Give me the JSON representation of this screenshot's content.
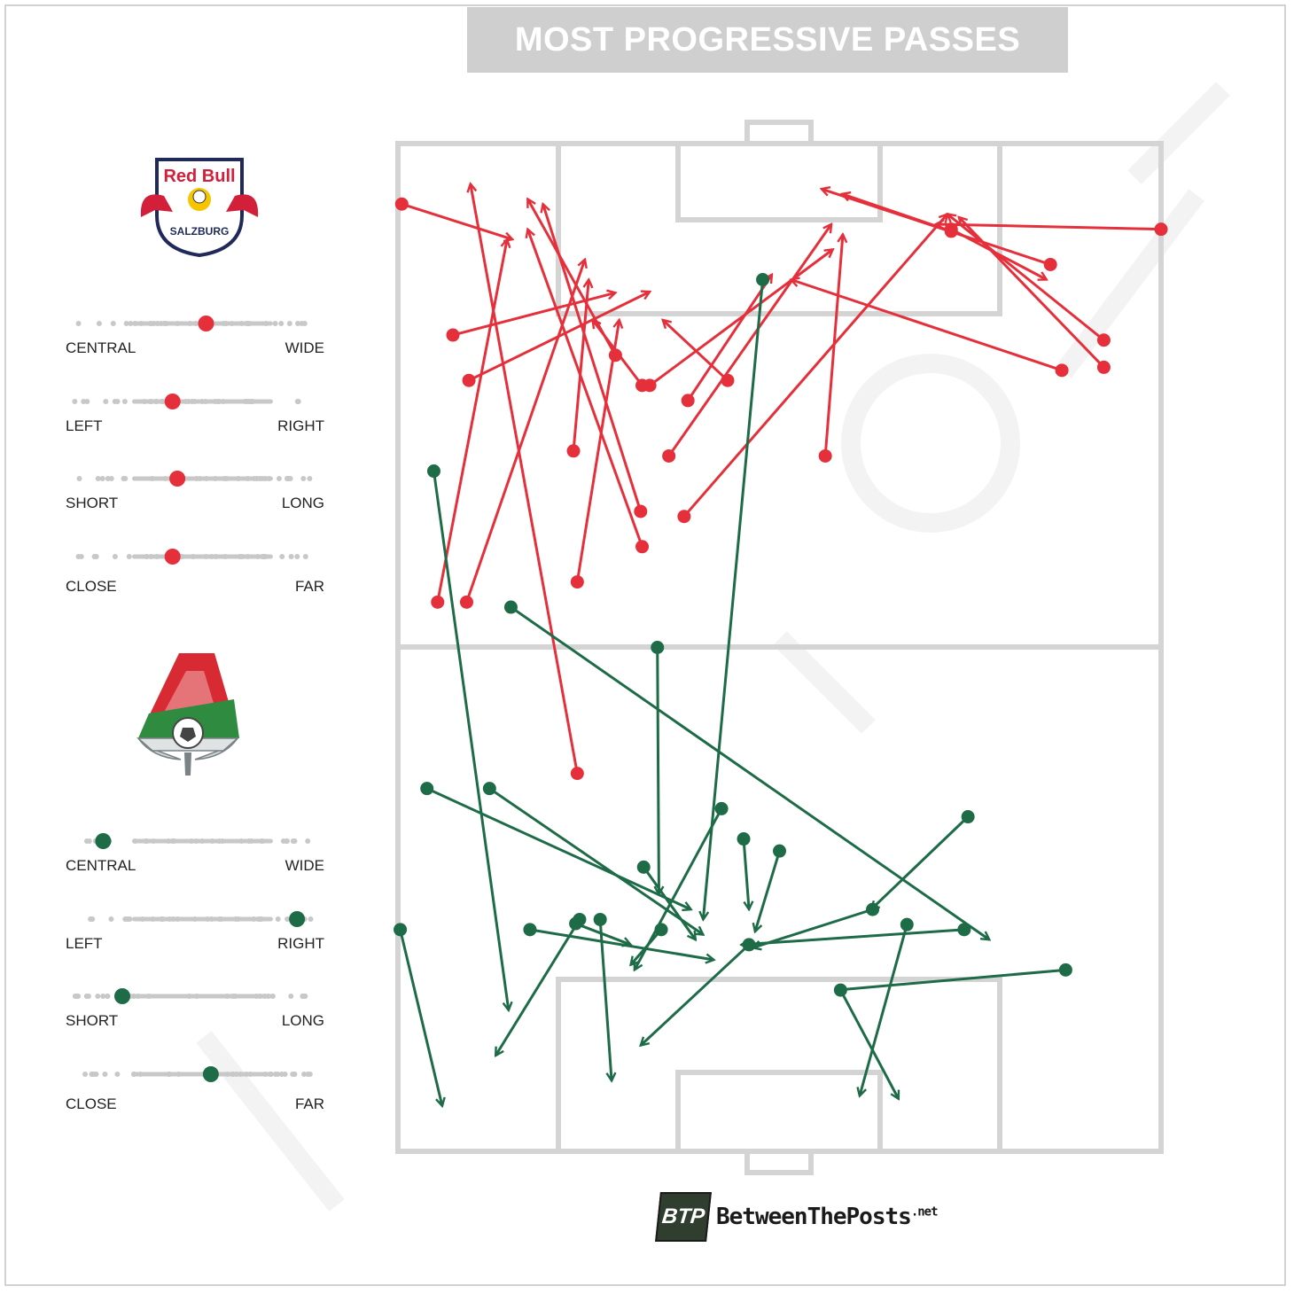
{
  "title": "MOST PROGRESSIVE PASSES",
  "colors": {
    "salzburg": "#e5303b",
    "lokomotiv": "#1e6b47",
    "pitch": "#d4d4d4",
    "slider_track": "#c8c8c8"
  },
  "teams": [
    {
      "name": "Red Bull Salzburg",
      "badge_text": "Red Bull",
      "badge_sub": "SALZBURG",
      "sliders": [
        {
          "left": "CENTRAL",
          "right": "WIDE",
          "value": 0.55
        },
        {
          "left": "LEFT",
          "right": "RIGHT",
          "value": 0.41
        },
        {
          "left": "SHORT",
          "right": "LONG",
          "value": 0.43
        },
        {
          "left": "CLOSE",
          "right": "FAR",
          "value": 0.41
        }
      ]
    },
    {
      "name": "Lokomotiv Moscow",
      "sliders": [
        {
          "left": "CENTRAL",
          "right": "WIDE",
          "value": 0.12
        },
        {
          "left": "LEFT",
          "right": "RIGHT",
          "value": 0.93
        },
        {
          "left": "SHORT",
          "right": "LONG",
          "value": 0.2
        },
        {
          "left": "CLOSE",
          "right": "FAR",
          "value": 0.57
        }
      ]
    }
  ],
  "brand": {
    "logo": "BTP",
    "name": "BetweenThePosts",
    "tld": ".net"
  },
  "chart_data": {
    "type": "pass-map",
    "title": "MOST PROGRESSIVE PASSES",
    "coordinate_system": "pitch fraction: x 0 = left touchline to 1 = right touchline; y 0 = top goal line to 1 = bottom goal line",
    "series": [
      {
        "team": "Red Bull Salzburg",
        "passes": [
          {
            "from": [
              0.005,
              0.06
            ],
            "to": [
              0.15,
              0.095
            ]
          },
          {
            "from": [
              0.235,
              0.625
            ],
            "to": [
              0.095,
              0.04
            ]
          },
          {
            "from": [
              0.052,
              0.455
            ],
            "to": [
              0.143,
              0.095
            ]
          },
          {
            "from": [
              0.09,
              0.455
            ],
            "to": [
              0.245,
              0.115
            ]
          },
          {
            "from": [
              0.072,
              0.19
            ],
            "to": [
              0.285,
              0.148
            ]
          },
          {
            "from": [
              0.093,
              0.235
            ],
            "to": [
              0.33,
              0.147
            ]
          },
          {
            "from": [
              0.23,
              0.305
            ],
            "to": [
              0.25,
              0.135
            ]
          },
          {
            "from": [
              0.235,
              0.435
            ],
            "to": [
              0.29,
              0.175
            ]
          },
          {
            "from": [
              0.285,
              0.21
            ],
            "to": [
              0.17,
              0.055
            ]
          },
          {
            "from": [
              0.318,
              0.365
            ],
            "to": [
              0.19,
              0.06
            ]
          },
          {
            "from": [
              0.32,
              0.4
            ],
            "to": [
              0.17,
              0.085
            ]
          },
          {
            "from": [
              0.32,
              0.24
            ],
            "to": [
              0.255,
              0.175
            ]
          },
          {
            "from": [
              0.432,
              0.235
            ],
            "to": [
              0.347,
              0.175
            ]
          },
          {
            "from": [
              0.38,
              0.255
            ],
            "to": [
              0.49,
              0.13
            ]
          },
          {
            "from": [
              0.355,
              0.31
            ],
            "to": [
              0.568,
              0.08
            ]
          },
          {
            "from": [
              0.375,
              0.37
            ],
            "to": [
              0.72,
              0.07
            ]
          },
          {
            "from": [
              0.56,
              0.31
            ],
            "to": [
              0.583,
              0.09
            ]
          },
          {
            "from": [
              0.33,
              0.24
            ],
            "to": [
              0.57,
              0.105
            ]
          },
          {
            "from": [
              0.87,
              0.225
            ],
            "to": [
              0.515,
              0.135
            ]
          },
          {
            "from": [
              1.0,
              0.085
            ],
            "to": [
              0.705,
              0.08
            ]
          },
          {
            "from": [
              0.925,
              0.195
            ],
            "to": [
              0.72,
              0.07
            ]
          },
          {
            "from": [
              0.925,
              0.222
            ],
            "to": [
              0.735,
              0.073
            ]
          },
          {
            "from": [
              0.855,
              0.12
            ],
            "to": [
              0.555,
              0.045
            ]
          },
          {
            "from": [
              0.725,
              0.085
            ],
            "to": [
              0.85,
              0.135
            ]
          },
          {
            "from": [
              0.725,
              0.087
            ],
            "to": [
              0.582,
              0.05
            ]
          }
        ]
      },
      {
        "team": "Lokomotiv Moscow",
        "passes": [
          {
            "from": [
              0.047,
              0.325
            ],
            "to": [
              0.145,
              0.86
            ]
          },
          {
            "from": [
              0.003,
              0.78
            ],
            "to": [
              0.058,
              0.955
            ]
          },
          {
            "from": [
              0.038,
              0.64
            ],
            "to": [
              0.384,
              0.76
            ]
          },
          {
            "from": [
              0.12,
              0.64
            ],
            "to": [
              0.4,
              0.785
            ]
          },
          {
            "from": [
              0.148,
              0.46
            ],
            "to": [
              0.775,
              0.79
            ]
          },
          {
            "from": [
              0.34,
              0.5
            ],
            "to": [
              0.342,
              0.745
            ]
          },
          {
            "from": [
              0.478,
              0.135
            ],
            "to": [
              0.4,
              0.77
            ]
          },
          {
            "from": [
              0.424,
              0.66
            ],
            "to": [
              0.31,
              0.82
            ]
          },
          {
            "from": [
              0.322,
              0.718
            ],
            "to": [
              0.39,
              0.79
            ]
          },
          {
            "from": [
              0.265,
              0.77
            ],
            "to": [
              0.28,
              0.93
            ]
          },
          {
            "from": [
              0.238,
              0.77
            ],
            "to": [
              0.128,
              0.905
            ]
          },
          {
            "from": [
              0.173,
              0.78
            ],
            "to": [
              0.414,
              0.81
            ]
          },
          {
            "from": [
              0.345,
              0.78
            ],
            "to": [
              0.305,
              0.815
            ]
          },
          {
            "from": [
              0.233,
              0.774
            ],
            "to": [
              0.305,
              0.795
            ]
          },
          {
            "from": [
              0.453,
              0.69
            ],
            "to": [
              0.46,
              0.76
            ]
          },
          {
            "from": [
              0.5,
              0.702
            ],
            "to": [
              0.468,
              0.782
            ]
          },
          {
            "from": [
              0.46,
              0.795
            ],
            "to": [
              0.318,
              0.895
            ]
          },
          {
            "from": [
              0.747,
              0.668
            ],
            "to": [
              0.62,
              0.76
            ]
          },
          {
            "from": [
              0.742,
              0.78
            ],
            "to": [
              0.45,
              0.795
            ]
          },
          {
            "from": [
              0.622,
              0.76
            ],
            "to": [
              0.465,
              0.798
            ]
          },
          {
            "from": [
              0.667,
              0.775
            ],
            "to": [
              0.605,
              0.945
            ]
          },
          {
            "from": [
              0.875,
              0.82
            ],
            "to": [
              0.575,
              0.84
            ]
          },
          {
            "from": [
              0.58,
              0.84
            ],
            "to": [
              0.656,
              0.948
            ]
          }
        ]
      }
    ]
  }
}
